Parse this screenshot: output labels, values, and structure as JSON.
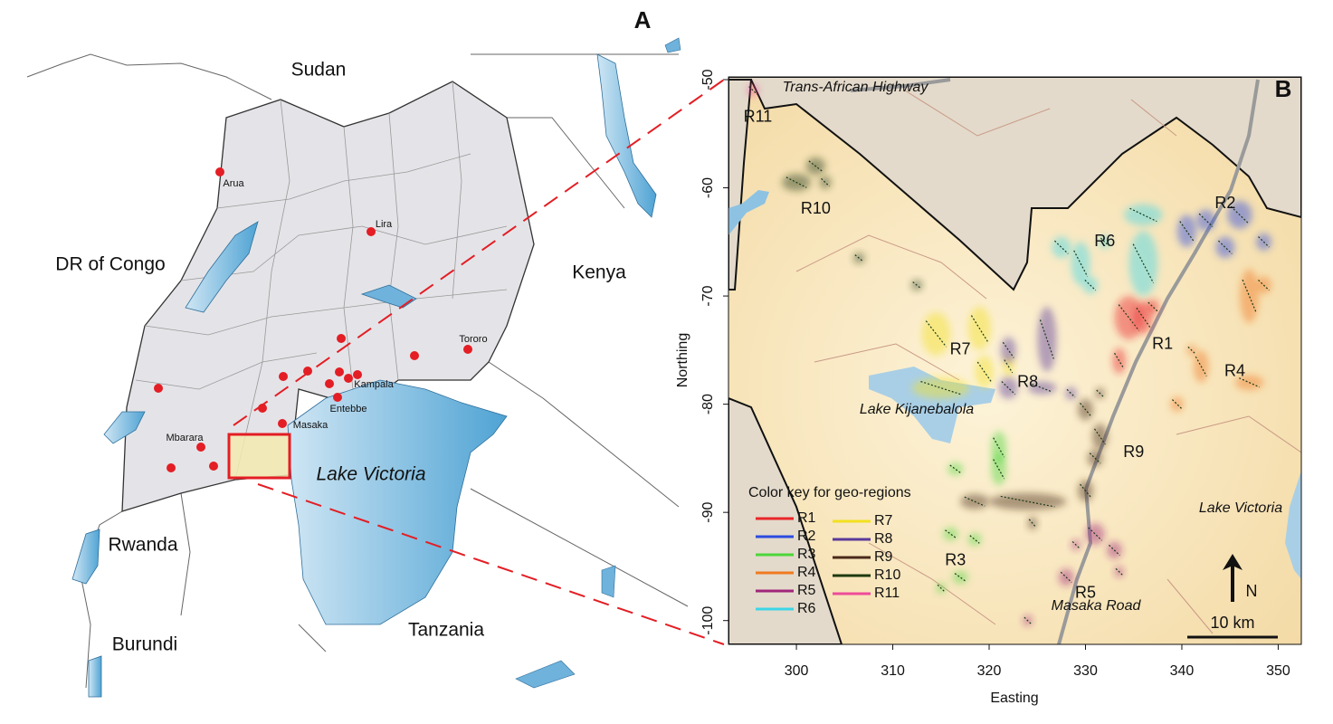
{
  "panel_a": {
    "label": "A",
    "countries": [
      "Sudan",
      "DR of Congo",
      "Kenya",
      "Rwanda",
      "Burundi",
      "Tanzania"
    ],
    "lakes": [
      "Lake Victoria"
    ],
    "cities": [
      "Arua",
      "Lira",
      "Tororo",
      "Kampala",
      "Entebbe",
      "Masaka",
      "Mbarara"
    ]
  },
  "panel_b": {
    "label": "B",
    "xlabel": "Easting",
    "ylabel": "Northing",
    "xlim": [
      292.95,
      352.4
    ],
    "ylim": [
      -102.2,
      -49.75
    ],
    "xticks": [
      300,
      310,
      320,
      330,
      340,
      350
    ],
    "yticks": [
      -50,
      -60,
      -70,
      -80,
      -90,
      -100
    ],
    "places": [
      "Trans-African Highway",
      "Lake Kijanebalola",
      "Lake Victoria",
      "Masaka Road"
    ],
    "legend_title": "Color key for geo-regions",
    "regions": [
      {
        "name": "R1",
        "color": "#e8262a"
      },
      {
        "name": "R2",
        "color": "#2b4ce0"
      },
      {
        "name": "R3",
        "color": "#4cd63a"
      },
      {
        "name": "R4",
        "color": "#f07a20"
      },
      {
        "name": "R5",
        "color": "#a0267a"
      },
      {
        "name": "R6",
        "color": "#3dd6e6"
      },
      {
        "name": "R7",
        "color": "#f2e020"
      },
      {
        "name": "R8",
        "color": "#5a3a9a"
      },
      {
        "name": "R9",
        "color": "#4a2a1a"
      },
      {
        "name": "R10",
        "color": "#1e3a10"
      },
      {
        "name": "R11",
        "color": "#ee4c9a"
      }
    ],
    "north": "N",
    "scale": "10 km"
  }
}
